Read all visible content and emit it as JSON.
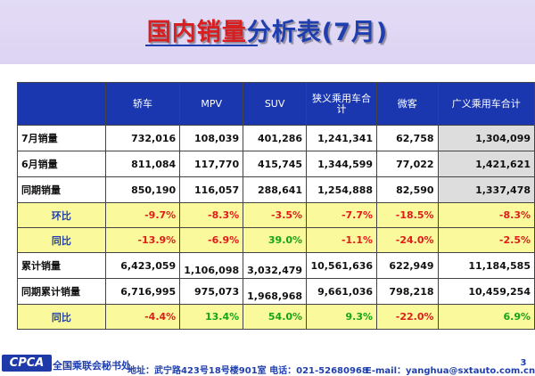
{
  "title": {
    "part1": "国内销量",
    "part2": "分析表(7月)"
  },
  "table": {
    "headers": [
      "轿车",
      "MPV",
      "SUV",
      "狭义乘用车合计",
      "微客",
      "广义乘用车合计"
    ],
    "rows": [
      {
        "label": "7月销量",
        "values": [
          "732,016",
          "108,039",
          "401,286",
          "1,241,341",
          "62,758",
          "1,304,099"
        ]
      },
      {
        "label": "6月销量",
        "values": [
          "811,084",
          "117,770",
          "415,745",
          "1,344,599",
          "77,022",
          "1,421,621"
        ]
      },
      {
        "label": "同期销量",
        "values": [
          "850,190",
          "116,057",
          "288,641",
          "1,254,888",
          "82,590",
          "1,337,478"
        ]
      },
      {
        "label": "环比",
        "values": [
          "-9.7%",
          "-8.3%",
          "-3.5%",
          "-7.7%",
          "-18.5%",
          "-8.3%"
        ]
      },
      {
        "label": "同比",
        "values": [
          "-13.9%",
          "-6.9%",
          "39.0%",
          "-1.1%",
          "-24.0%",
          "-2.5%"
        ]
      },
      {
        "label": "累计销量",
        "values": [
          "6,423,059",
          "1,106,098",
          "3,032,479",
          "10,561,636",
          "622,949",
          "11,184,585"
        ]
      },
      {
        "label": "同期累计销量",
        "values": [
          "6,716,995",
          "975,073",
          "1,968,968",
          "9,661,036",
          "798,218",
          "10,459,254"
        ]
      },
      {
        "label": "同比",
        "values": [
          "-4.4%",
          "13.4%",
          "54.0%",
          "9.3%",
          "-22.0%",
          "6.9%"
        ]
      }
    ]
  },
  "footer": {
    "logo": "CPCA",
    "org": "全国乘联会秘书处",
    "address": "地址：武宁路423号18号楼901室  电话：021-52680968",
    "email": "E-mail：yanghua@sxtauto.com.cn",
    "page": "3"
  }
}
